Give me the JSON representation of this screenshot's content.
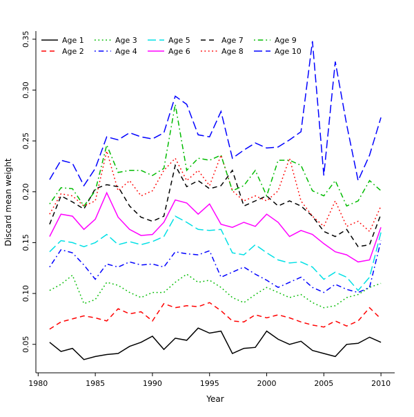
{
  "chart_data": {
    "type": "line",
    "title": "",
    "xlabel": "Year",
    "ylabel": "Discard mean weight",
    "background": "#ffffff",
    "axis_color": "#000000",
    "grid": false,
    "legend_position": "top-left",
    "xlim": [
      1980,
      2011
    ],
    "ylim": [
      0.03,
      0.36
    ],
    "xticks": [
      1980,
      1985,
      1990,
      1995,
      2000,
      2005,
      2010
    ],
    "yticks": [
      0.05,
      0.1,
      0.15,
      0.2,
      0.25,
      0.3,
      0.35
    ],
    "ytick_labels": [
      "0.05",
      "0.10",
      "0.15",
      "0.20",
      "0.25",
      "0.30",
      "0.35"
    ],
    "x": [
      1981,
      1982,
      1983,
      1984,
      1985,
      1986,
      1987,
      1988,
      1989,
      1990,
      1991,
      1992,
      1993,
      1994,
      1995,
      1996,
      1997,
      1998,
      1999,
      2000,
      2001,
      2002,
      2003,
      2004,
      2005,
      2006,
      2007,
      2008,
      2009,
      2010
    ],
    "series": [
      {
        "name": "Age 1",
        "color": "#000000",
        "dash": "solid",
        "values": [
          0.052,
          0.043,
          0.046,
          0.035,
          0.038,
          0.04,
          0.041,
          0.048,
          0.052,
          0.058,
          0.045,
          0.056,
          0.054,
          0.066,
          0.061,
          0.063,
          0.041,
          0.046,
          0.047,
          0.063,
          0.055,
          0.05,
          0.053,
          0.044,
          0.041,
          0.038,
          0.05,
          0.051,
          0.057,
          0.052
        ]
      },
      {
        "name": "Age 2",
        "color": "#ff0000",
        "dash": "dashed",
        "values": [
          0.065,
          0.072,
          0.075,
          0.078,
          0.076,
          0.073,
          0.085,
          0.08,
          0.082,
          0.073,
          0.09,
          0.086,
          0.088,
          0.087,
          0.091,
          0.083,
          0.073,
          0.072,
          0.079,
          0.076,
          0.079,
          0.076,
          0.072,
          0.069,
          0.067,
          0.073,
          0.068,
          0.073,
          0.086,
          0.075
        ]
      },
      {
        "name": "Age 3",
        "color": "#00bb00",
        "dash": "dotted",
        "values": [
          0.103,
          0.109,
          0.118,
          0.09,
          0.094,
          0.111,
          0.108,
          0.101,
          0.096,
          0.101,
          0.101,
          0.111,
          0.119,
          0.111,
          0.113,
          0.106,
          0.096,
          0.091,
          0.099,
          0.106,
          0.101,
          0.096,
          0.099,
          0.091,
          0.086,
          0.088,
          0.096,
          0.099,
          0.106,
          0.11
        ]
      },
      {
        "name": "Age 4",
        "color": "#0000ff",
        "dash": "dotdash",
        "values": [
          0.126,
          0.143,
          0.14,
          0.128,
          0.114,
          0.129,
          0.126,
          0.131,
          0.128,
          0.129,
          0.126,
          0.141,
          0.139,
          0.138,
          0.142,
          0.116,
          0.121,
          0.126,
          0.119,
          0.113,
          0.106,
          0.111,
          0.116,
          0.106,
          0.101,
          0.109,
          0.104,
          0.101,
          0.106,
          0.152
        ]
      },
      {
        "name": "Age 5",
        "color": "#00e0e5",
        "dash": "longdash",
        "values": [
          0.141,
          0.152,
          0.15,
          0.146,
          0.15,
          0.158,
          0.148,
          0.151,
          0.148,
          0.151,
          0.156,
          0.176,
          0.17,
          0.163,
          0.162,
          0.163,
          0.14,
          0.138,
          0.148,
          0.14,
          0.133,
          0.13,
          0.131,
          0.126,
          0.114,
          0.121,
          0.116,
          0.103,
          0.116,
          0.16
        ]
      },
      {
        "name": "Age 6",
        "color": "#ff00ff",
        "dash": "solid",
        "values": [
          0.156,
          0.178,
          0.176,
          0.163,
          0.173,
          0.199,
          0.175,
          0.163,
          0.157,
          0.158,
          0.17,
          0.192,
          0.189,
          0.178,
          0.188,
          0.168,
          0.165,
          0.17,
          0.166,
          0.178,
          0.17,
          0.156,
          0.162,
          0.158,
          0.149,
          0.141,
          0.138,
          0.131,
          0.133,
          0.165
        ]
      },
      {
        "name": "Age 7",
        "color": "#000000",
        "dash": "dashed",
        "values": [
          0.168,
          0.196,
          0.19,
          0.183,
          0.203,
          0.207,
          0.205,
          0.186,
          0.175,
          0.171,
          0.176,
          0.226,
          0.205,
          0.211,
          0.203,
          0.206,
          0.221,
          0.186,
          0.191,
          0.196,
          0.186,
          0.191,
          0.186,
          0.176,
          0.161,
          0.156,
          0.163,
          0.146,
          0.148,
          0.178
        ]
      },
      {
        "name": "Age 8",
        "color": "#ff0000",
        "dash": "dotted",
        "values": [
          0.178,
          0.198,
          0.196,
          0.186,
          0.191,
          0.24,
          0.201,
          0.211,
          0.196,
          0.201,
          0.221,
          0.233,
          0.211,
          0.221,
          0.206,
          0.236,
          0.201,
          0.191,
          0.196,
          0.191,
          0.201,
          0.233,
          0.191,
          0.176,
          0.166,
          0.191,
          0.166,
          0.171,
          0.161,
          0.186
        ]
      },
      {
        "name": "Age 9",
        "color": "#00bb00",
        "dash": "dotdash",
        "values": [
          0.188,
          0.204,
          0.203,
          0.186,
          0.201,
          0.246,
          0.219,
          0.221,
          0.221,
          0.216,
          0.223,
          0.286,
          0.221,
          0.233,
          0.231,
          0.236,
          0.201,
          0.206,
          0.221,
          0.196,
          0.231,
          0.231,
          0.226,
          0.201,
          0.196,
          0.211,
          0.186,
          0.191,
          0.211,
          0.201
        ]
      },
      {
        "name": "Age 10",
        "color": "#0000ff",
        "dash": "longdash",
        "values": [
          0.212,
          0.231,
          0.228,
          0.206,
          0.223,
          0.254,
          0.251,
          0.258,
          0.254,
          0.252,
          0.258,
          0.294,
          0.286,
          0.256,
          0.254,
          0.279,
          0.233,
          0.241,
          0.248,
          0.243,
          0.244,
          0.251,
          0.259,
          0.348,
          0.216,
          0.328,
          0.266,
          0.211,
          0.236,
          0.273
        ]
      }
    ]
  }
}
